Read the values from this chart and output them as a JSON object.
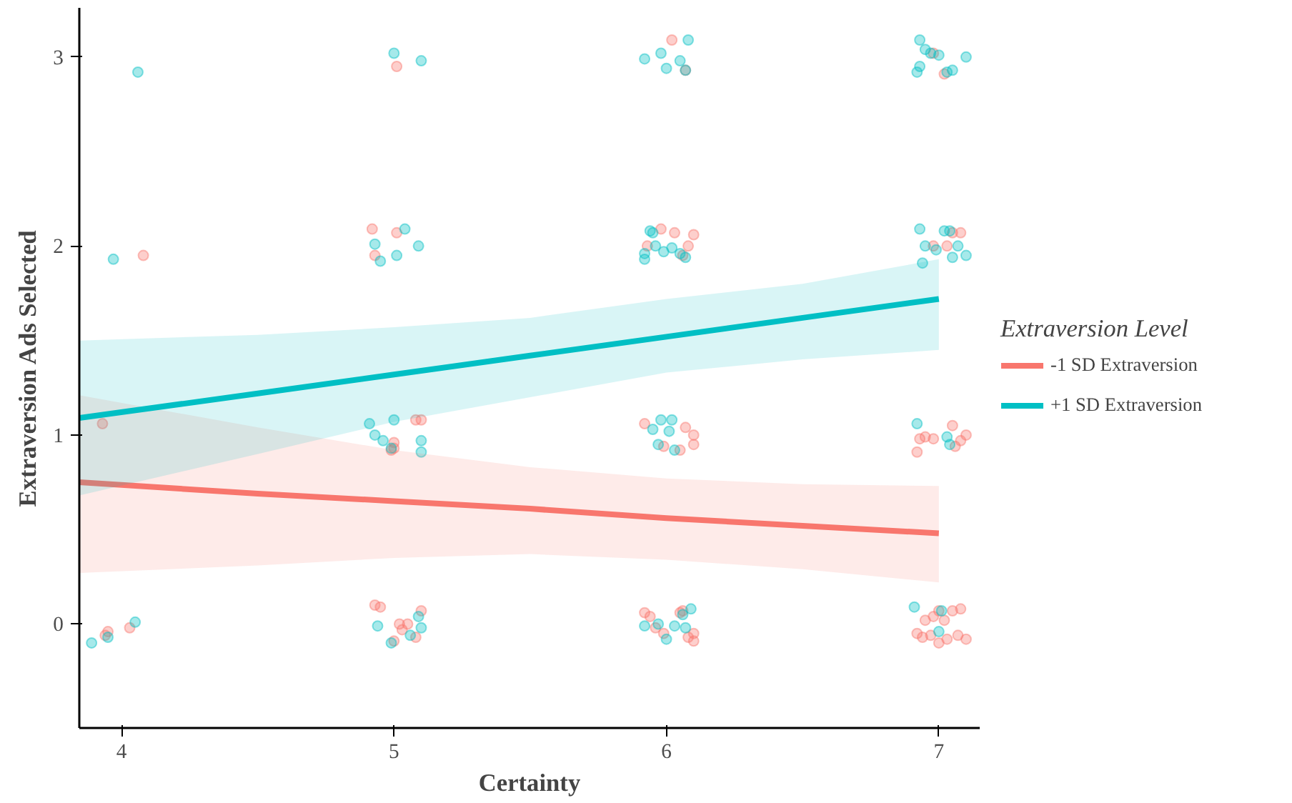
{
  "chart_data": {
    "type": "scatter",
    "xlabel": "Certainty",
    "ylabel": "Extraversion Ads Selected",
    "legend_title": "Extraversion Level",
    "legend": "right",
    "grid": false,
    "xlim": [
      3.845,
      7.15
    ],
    "ylim": [
      -0.55,
      3.26
    ],
    "xticks": [
      4,
      5,
      6,
      7
    ],
    "yticks": [
      0,
      1,
      2,
      3
    ],
    "series": [
      {
        "marker": "circle",
        "color": "#f8766d",
        "x": [
          4.08,
          4.92,
          4.93,
          5.01,
          5.01,
          3.93,
          5.0,
          5.0,
          5.1,
          5.08,
          4.99,
          5.92,
          6.07,
          6.1,
          6.1,
          5.99,
          6.05,
          6.93,
          6.95,
          6.98,
          6.92,
          7.05,
          7.08,
          7.1,
          7.06,
          5.98,
          6.03,
          6.1,
          6.08,
          5.93,
          6.06,
          6.98,
          7.05,
          7.08,
          7.03,
          6.02,
          6.07,
          6.98,
          7.02,
          3.94,
          3.95,
          4.03,
          4.93,
          4.95,
          5.02,
          5.03,
          5.0,
          5.08,
          5.1,
          5.05,
          5.92,
          5.94,
          5.96,
          6.05,
          6.06,
          6.08,
          6.1,
          6.1,
          5.99,
          6.92,
          6.94,
          6.97,
          7.0,
          7.02,
          7.05,
          7.08,
          7.1,
          7.07,
          6.95,
          7.03,
          7.0,
          6.98
        ],
        "values": [
          1.95,
          2.09,
          1.95,
          2.07,
          2.95,
          1.06,
          0.96,
          0.93,
          1.08,
          1.08,
          0.92,
          1.06,
          1.04,
          1.0,
          0.95,
          0.94,
          0.92,
          0.98,
          0.99,
          0.98,
          0.91,
          1.05,
          0.97,
          1.0,
          0.94,
          2.09,
          2.07,
          2.06,
          2.0,
          2.0,
          1.95,
          2.0,
          2.07,
          2.07,
          2.0,
          3.09,
          2.93,
          3.02,
          2.91,
          -0.06,
          -0.04,
          -0.02,
          0.1,
          0.09,
          0.0,
          -0.03,
          -0.09,
          -0.07,
          0.07,
          0.0,
          0.06,
          0.04,
          -0.02,
          0.06,
          0.07,
          -0.07,
          -0.05,
          -0.09,
          -0.05,
          -0.05,
          -0.07,
          -0.06,
          0.07,
          0.02,
          0.07,
          0.08,
          -0.08,
          -0.06,
          0.02,
          -0.08,
          -0.1,
          0.04
        ]
      },
      {
        "marker": "circle",
        "color": "#00bfc4",
        "x": [
          4.06,
          5.0,
          5.1,
          5.92,
          5.98,
          6.08,
          6.0,
          6.05,
          6.07,
          6.93,
          6.95,
          6.97,
          6.93,
          6.92,
          7.03,
          7.05,
          7.1,
          7.0,
          3.97,
          4.93,
          4.95,
          5.01,
          5.04,
          5.09,
          5.92,
          5.94,
          5.96,
          5.99,
          6.02,
          6.05,
          6.07,
          5.95,
          5.92,
          6.93,
          6.95,
          6.99,
          7.02,
          7.04,
          7.07,
          7.1,
          6.94,
          7.05,
          4.91,
          4.93,
          4.96,
          4.99,
          5.0,
          5.1,
          5.1,
          5.95,
          5.98,
          6.02,
          6.01,
          5.97,
          6.03,
          6.92,
          7.03,
          7.04,
          3.89,
          3.95,
          4.05,
          4.94,
          4.99,
          5.09,
          5.1,
          5.06,
          5.92,
          5.97,
          6.0,
          6.03,
          6.06,
          6.07,
          6.09,
          7.01,
          7.0,
          6.91
        ],
        "values": [
          2.92,
          3.02,
          2.98,
          2.99,
          3.02,
          3.09,
          2.94,
          2.98,
          2.93,
          3.09,
          3.04,
          3.02,
          2.95,
          2.92,
          2.92,
          2.93,
          3.0,
          3.01,
          1.93,
          2.01,
          1.92,
          1.95,
          2.09,
          2.0,
          1.96,
          2.08,
          2.0,
          1.97,
          1.99,
          1.96,
          1.94,
          2.07,
          1.93,
          2.09,
          2.0,
          1.98,
          2.08,
          2.08,
          2.0,
          1.95,
          1.91,
          1.94,
          1.06,
          1.0,
          0.97,
          0.93,
          1.08,
          0.97,
          0.91,
          1.03,
          1.08,
          1.08,
          1.02,
          0.95,
          0.92,
          1.06,
          0.99,
          0.95,
          -0.1,
          -0.07,
          0.01,
          -0.01,
          -0.1,
          0.04,
          -0.02,
          -0.06,
          -0.01,
          0.0,
          -0.08,
          -0.01,
          0.05,
          -0.02,
          0.08,
          0.07,
          -0.04,
          0.09
        ]
      },
      {
        "type": "line",
        "name": "-1 SD Extraversion",
        "color": "#f8766d",
        "x": [
          3.845,
          4.5,
          5,
          5.5,
          6,
          6.5,
          7
        ],
        "values": [
          0.75,
          0.69,
          0.65,
          0.61,
          0.56,
          0.52,
          0.48
        ],
        "lower": [
          0.27,
          0.31,
          0.35,
          0.37,
          0.34,
          0.29,
          0.22
        ],
        "upper": [
          1.21,
          1.04,
          0.92,
          0.83,
          0.77,
          0.74,
          0.73
        ]
      },
      {
        "type": "line",
        "name": "+1 SD Extraversion",
        "color": "#00bfc4",
        "x": [
          3.845,
          4.5,
          5,
          5.5,
          6,
          6.5,
          7
        ],
        "values": [
          1.09,
          1.22,
          1.32,
          1.42,
          1.52,
          1.62,
          1.72
        ],
        "lower": [
          0.68,
          0.9,
          1.07,
          1.2,
          1.33,
          1.4,
          1.45
        ],
        "upper": [
          1.5,
          1.53,
          1.57,
          1.62,
          1.72,
          1.8,
          1.93
        ]
      }
    ]
  }
}
